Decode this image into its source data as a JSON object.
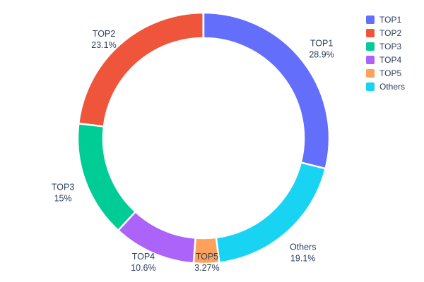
{
  "chart_data": {
    "type": "pie",
    "title": "",
    "hole_ratio": 0.8,
    "labels": [
      "TOP1",
      "TOP2",
      "TOP3",
      "TOP4",
      "TOP5",
      "Others"
    ],
    "values": [
      28.9,
      23.1,
      15,
      10.6,
      3.27,
      19.1
    ],
    "percent_labels": [
      "28.9%",
      "23.1%",
      "15%",
      "10.6%",
      "3.27%",
      "19.1%"
    ],
    "colors": [
      "#636efa",
      "#ef553b",
      "#00cc96",
      "#ab63fa",
      "#ffa15a",
      "#19d3f3"
    ],
    "draw_order": [
      0,
      5,
      4,
      3,
      2,
      1
    ],
    "direction": "clockwise",
    "start_angle_deg": 0,
    "legend_position": "top-right",
    "legend_entries": [
      "TOP1",
      "TOP2",
      "TOP3",
      "TOP4",
      "TOP5",
      "Others"
    ],
    "text_color": "#2a3f5f",
    "background_color": "#ffffff"
  }
}
